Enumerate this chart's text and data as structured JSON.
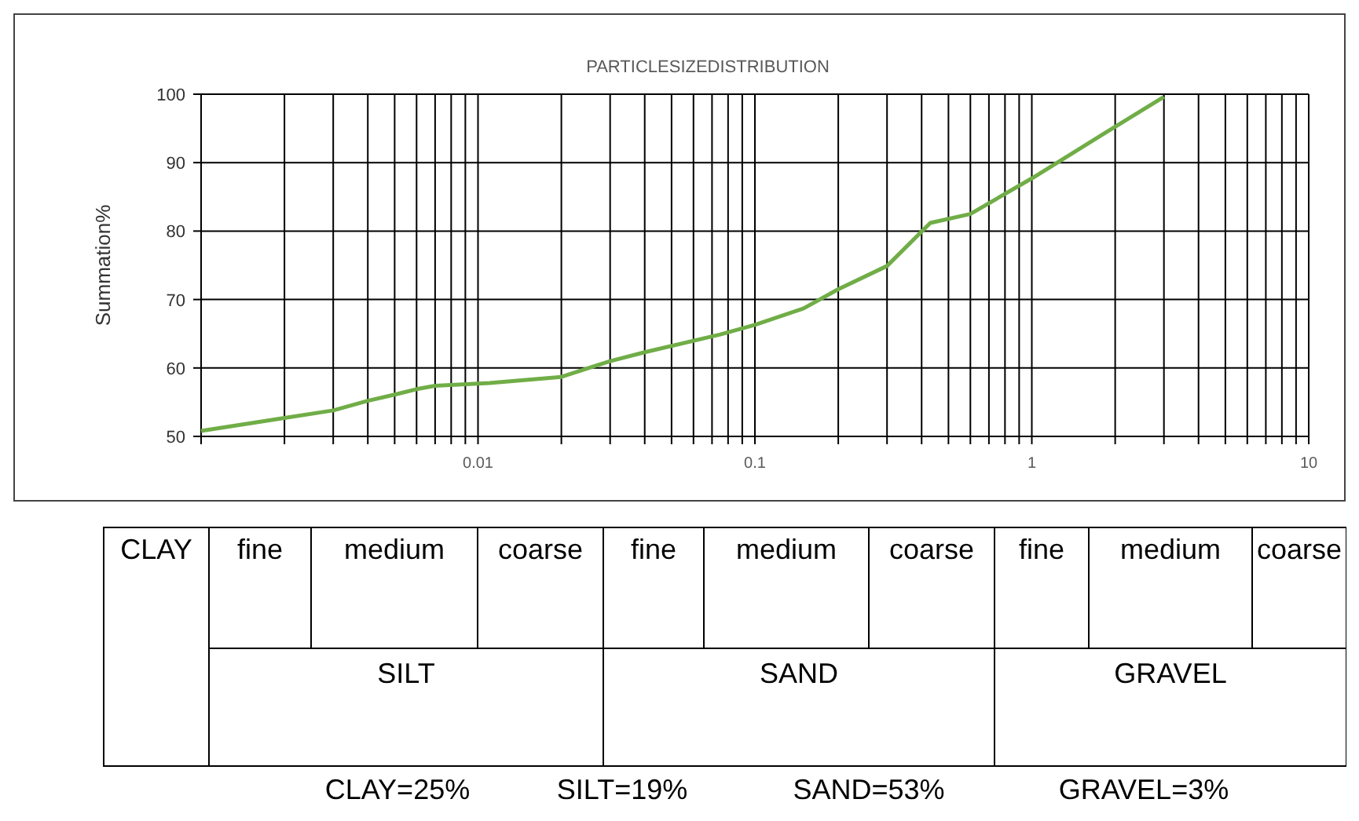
{
  "chart_data": {
    "type": "line",
    "title": "PARTICLESIZEDISTRIBUTION",
    "ylabel": "Summation%",
    "x": [
      0.001,
      0.002,
      0.003,
      0.004,
      0.005,
      0.006,
      0.007,
      0.011,
      0.02,
      0.03,
      0.04,
      0.075,
      0.1,
      0.15,
      0.2,
      0.3,
      0.43,
      0.6,
      1,
      1.8,
      3
    ],
    "series": [
      {
        "color": "#70ad47",
        "values": [
          50.8,
          52.7,
          53.8,
          55.2,
          56.1,
          56.9,
          57.4,
          57.8,
          58.7,
          61.0,
          62.3,
          64.9,
          66.3,
          68.7,
          71.5,
          74.9,
          81.2,
          82.5,
          87.7,
          94.1,
          99.6
        ]
      }
    ],
    "log": "x",
    "xlim": [
      0.001,
      10
    ],
    "xticks": [
      {
        "value": 0.001,
        "label": null
      },
      {
        "value": 0.002,
        "label": null
      },
      {
        "value": 0.003,
        "label": null
      },
      {
        "value": 0.004,
        "label": null
      },
      {
        "value": 0.005,
        "label": null
      },
      {
        "value": 0.006,
        "label": null
      },
      {
        "value": 0.007,
        "label": null
      },
      {
        "value": 0.008,
        "label": null
      },
      {
        "value": 0.009,
        "label": null
      },
      0.01,
      {
        "value": 0.02,
        "label": null
      },
      {
        "value": 0.03,
        "label": null
      },
      {
        "value": 0.04,
        "label": null
      },
      {
        "value": 0.05,
        "label": null
      },
      {
        "value": 0.06,
        "label": null
      },
      {
        "value": 0.07,
        "label": null
      },
      {
        "value": 0.08,
        "label": null
      },
      {
        "value": 0.09,
        "label": null
      },
      0.1,
      {
        "value": 0.2,
        "label": null
      },
      {
        "value": 0.3,
        "label": null
      },
      {
        "value": 0.4,
        "label": null
      },
      {
        "value": 0.5,
        "label": null
      },
      {
        "value": 0.6,
        "label": null
      },
      {
        "value": 0.7,
        "label": null
      },
      {
        "value": 0.8,
        "label": null
      },
      {
        "value": 0.9,
        "label": null
      },
      1,
      {
        "value": 2,
        "label": null
      },
      {
        "value": 3,
        "label": null
      },
      {
        "value": 4,
        "label": null
      },
      {
        "value": 5,
        "label": null
      },
      {
        "value": 6,
        "label": null
      },
      {
        "value": 7,
        "label": null
      },
      {
        "value": 8,
        "label": null
      },
      {
        "value": 9,
        "label": null
      },
      10
    ],
    "ylim": [
      50,
      100
    ],
    "yticks": [
      50,
      60,
      70,
      80,
      90,
      100
    ],
    "grid": true,
    "marker": "none",
    "line_style": "solid",
    "annotations": [
      "CLAY",
      "fine",
      "medium",
      "coarse",
      "fine",
      "medium",
      "coarse",
      "fine",
      "medium",
      "coarse",
      "SILT",
      "SAND",
      "GRAVEL",
      "CLAY=25%",
      "SILT=19%",
      "SAND=53%",
      "GRAVEL=3%"
    ]
  }
}
